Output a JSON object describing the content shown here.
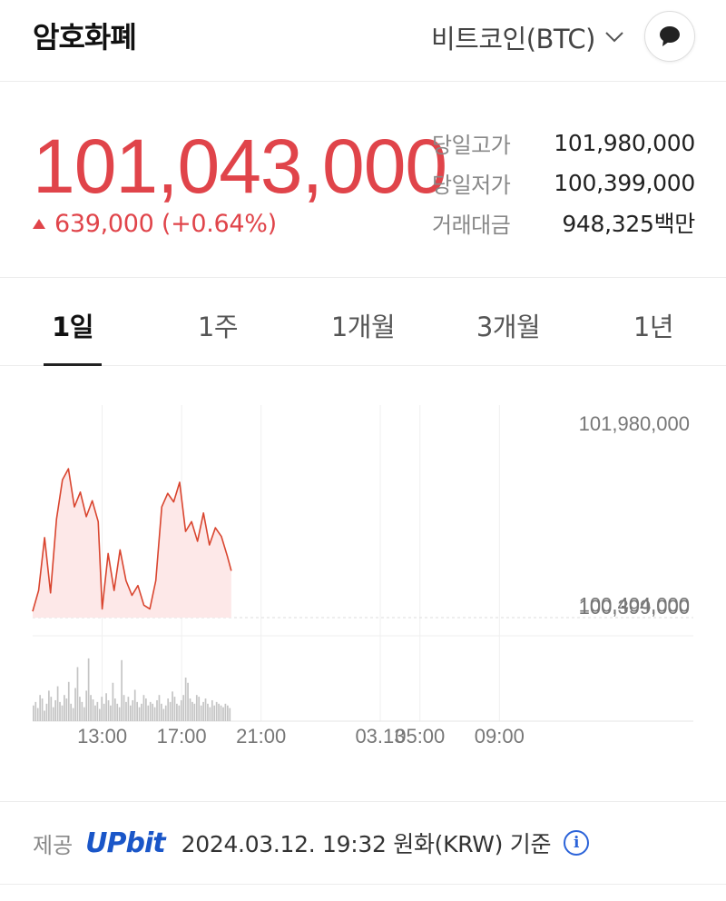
{
  "header": {
    "title": "암호화폐",
    "coin_selector": "비트코인(BTC)",
    "chevron_icon": "chevron-down-icon",
    "chat_icon": "chat-bubble-icon"
  },
  "price": {
    "current": "101,043,000",
    "change": "639,000 (+0.64%)",
    "direction": "up",
    "color": "#e0444a"
  },
  "stats": [
    {
      "label": "당일고가",
      "value": "101,980,000"
    },
    {
      "label": "당일저가",
      "value": "100,399,000"
    },
    {
      "label": "거래대금",
      "value": "948,325백만"
    }
  ],
  "tabs": [
    {
      "label": "1일",
      "active": true
    },
    {
      "label": "1주",
      "active": false
    },
    {
      "label": "1개월",
      "active": false
    },
    {
      "label": "3개월",
      "active": false
    },
    {
      "label": "1년",
      "active": false
    }
  ],
  "chart_data": {
    "type": "area",
    "y_labels": [
      "101,980,000",
      "100,404,000",
      "100,399,000"
    ],
    "ylim": [
      100399000,
      101980000
    ],
    "x_tick_labels": [
      "13:00",
      "17:00",
      "21:00",
      "03.13",
      "05:00",
      "09:00"
    ],
    "x_tick_hours": [
      13,
      17,
      21,
      27,
      29,
      33
    ],
    "x_range_hours": [
      9.5,
      35.5
    ],
    "series": [
      {
        "line_color": "#d9452f",
        "fill_color": "#fde8e8",
        "x_hours": [
          9.5,
          9.8,
          10.1,
          10.4,
          10.7,
          11.0,
          11.3,
          11.6,
          11.9,
          12.2,
          12.5,
          12.8,
          13.0,
          13.3,
          13.6,
          13.9,
          14.2,
          14.5,
          14.8,
          15.1,
          15.4,
          15.7,
          16.0,
          16.3,
          16.6,
          16.9,
          17.2,
          17.5,
          17.8,
          18.1,
          18.4,
          18.7,
          19.0,
          19.3,
          19.5
        ],
        "values": [
          100450000,
          100620000,
          101050000,
          100600000,
          101200000,
          101520000,
          101610000,
          101300000,
          101420000,
          101220000,
          101350000,
          101180000,
          100470000,
          100920000,
          100620000,
          100950000,
          100700000,
          100580000,
          100660000,
          100500000,
          100470000,
          100700000,
          101300000,
          101410000,
          101340000,
          101500000,
          101100000,
          101180000,
          101020000,
          101250000,
          100990000,
          101130000,
          101060000,
          100900000,
          100780000
        ]
      }
    ],
    "volume": [
      18,
      22,
      15,
      30,
      26,
      12,
      20,
      35,
      28,
      16,
      24,
      40,
      22,
      18,
      30,
      26,
      45,
      20,
      15,
      38,
      62,
      28,
      22,
      16,
      35,
      72,
      30,
      25,
      18,
      22,
      14,
      28,
      20,
      32,
      24,
      18,
      44,
      26,
      20,
      16,
      70,
      30,
      22,
      28,
      18,
      24,
      36,
      22,
      16,
      20,
      30,
      26,
      18,
      22,
      20,
      16,
      24,
      30,
      20,
      14,
      18,
      26,
      22,
      34,
      28,
      20,
      18,
      24,
      30,
      50,
      44,
      26,
      22,
      20,
      30,
      28,
      18,
      22,
      26,
      20,
      16,
      24,
      18,
      22,
      20,
      18,
      16,
      20,
      18,
      15
    ],
    "volume_max": 75
  },
  "footer": {
    "label": "제공",
    "provider": "UPbit",
    "timestamp": "2024.03.12. 19:32 원화(KRW) 기준",
    "info_icon": "info-icon"
  }
}
